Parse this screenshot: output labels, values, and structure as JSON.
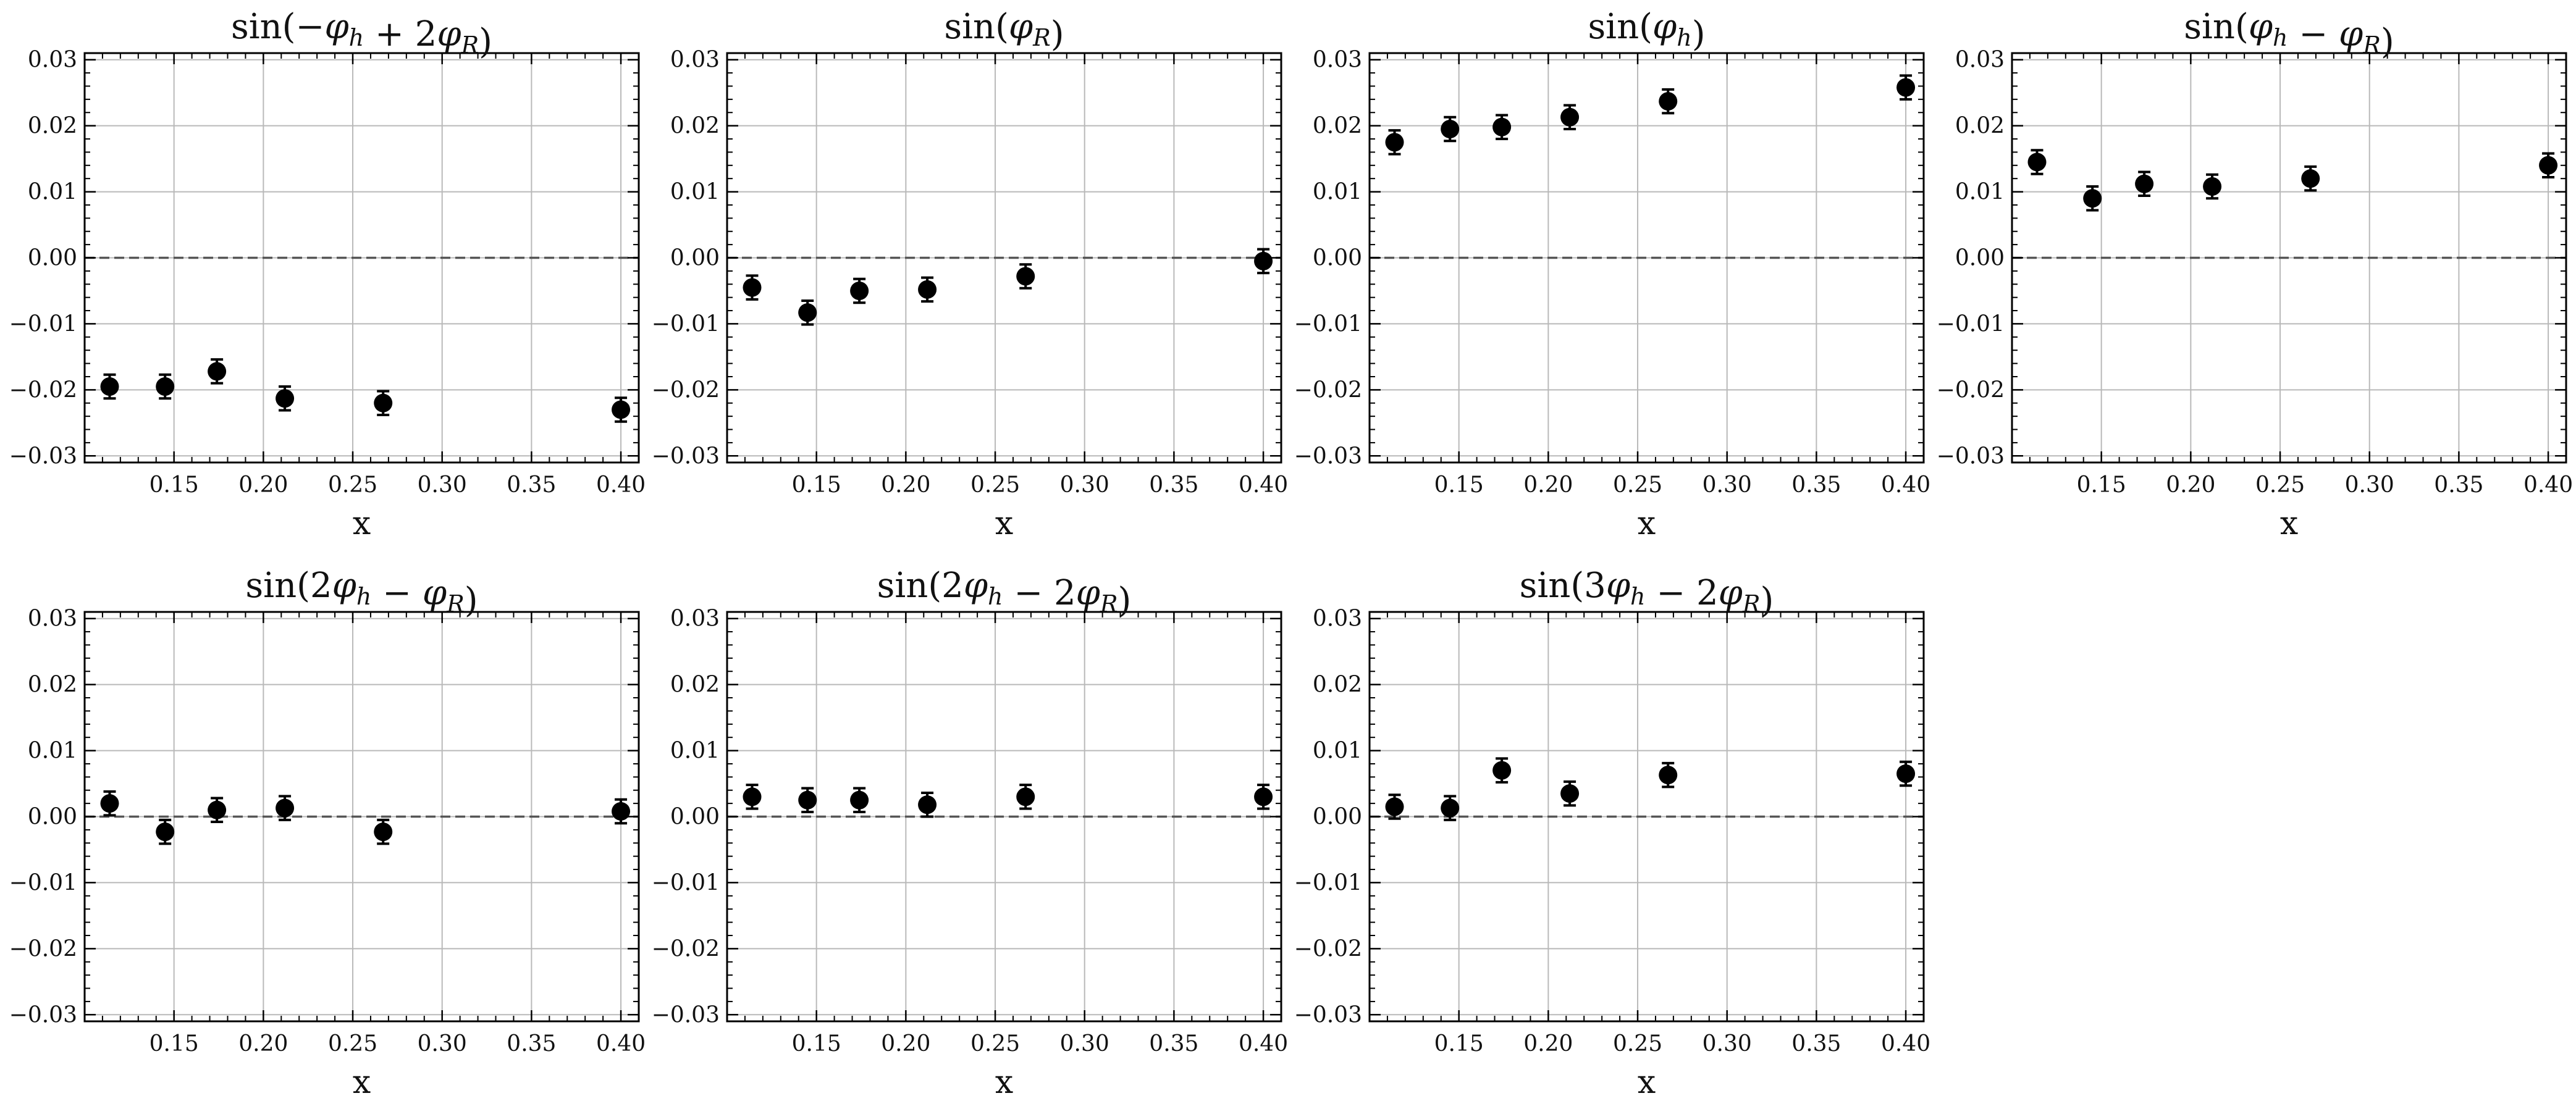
{
  "chart_data": [
    {
      "type": "scatter",
      "title": "sin(-φ_h+2φ_R)",
      "title_tex": [
        [
          "sin(−"
        ],
        [
          "φ",
          "h"
        ],
        [
          " + 2"
        ],
        [
          "φ",
          "R"
        ],
        [
          ")"
        ]
      ],
      "xlabel": "x",
      "ylabel": "",
      "xticks": [
        "0.15",
        "0.20",
        "0.25",
        "0.30",
        "0.35",
        "0.40"
      ],
      "yticks": [
        "−0.03",
        "−0.02",
        "−0.01",
        "0.00",
        "0.01",
        "0.02",
        "0.03"
      ],
      "xlim": [
        0.1,
        0.41
      ],
      "ylim": [
        -0.031,
        0.031
      ],
      "grid": true,
      "reference_line": 0,
      "x": [
        0.114,
        0.145,
        0.174,
        0.212,
        0.267,
        0.4
      ],
      "y": [
        -0.0195,
        -0.0195,
        -0.0172,
        -0.0213,
        -0.022,
        -0.023
      ],
      "yerr": [
        0.0018,
        0.0018,
        0.0018,
        0.0018,
        0.0018,
        0.0018
      ]
    },
    {
      "type": "scatter",
      "title": "sin(φ_R)",
      "title_tex": [
        [
          "sin("
        ],
        [
          "φ",
          "R"
        ],
        [
          ")"
        ]
      ],
      "xlabel": "x",
      "ylabel": "",
      "xticks": [
        "0.15",
        "0.20",
        "0.25",
        "0.30",
        "0.35",
        "0.40"
      ],
      "yticks": [
        "−0.03",
        "−0.02",
        "−0.01",
        "0.00",
        "0.01",
        "0.02",
        "0.03"
      ],
      "xlim": [
        0.1,
        0.41
      ],
      "ylim": [
        -0.031,
        0.031
      ],
      "grid": true,
      "reference_line": 0,
      "x": [
        0.114,
        0.145,
        0.174,
        0.212,
        0.267,
        0.4
      ],
      "y": [
        -0.0045,
        -0.0083,
        -0.005,
        -0.0048,
        -0.0028,
        -0.0005
      ],
      "yerr": [
        0.0018,
        0.0018,
        0.0018,
        0.0018,
        0.0018,
        0.0018
      ]
    },
    {
      "type": "scatter",
      "title": "sin(φ_h)",
      "title_tex": [
        [
          "sin("
        ],
        [
          "φ",
          "h"
        ],
        [
          ")"
        ]
      ],
      "xlabel": "x",
      "ylabel": "",
      "xticks": [
        "0.15",
        "0.20",
        "0.25",
        "0.30",
        "0.35",
        "0.40"
      ],
      "yticks": [
        "−0.03",
        "−0.02",
        "−0.01",
        "0.00",
        "0.01",
        "0.02",
        "0.03"
      ],
      "xlim": [
        0.1,
        0.41
      ],
      "ylim": [
        -0.031,
        0.031
      ],
      "grid": true,
      "reference_line": 0,
      "x": [
        0.114,
        0.145,
        0.174,
        0.212,
        0.267,
        0.4
      ],
      "y": [
        0.0175,
        0.0195,
        0.0198,
        0.0213,
        0.0237,
        0.0258
      ],
      "yerr": [
        0.0018,
        0.0018,
        0.0018,
        0.0018,
        0.0018,
        0.0018
      ]
    },
    {
      "type": "scatter",
      "title": "sin(φ_h-φ_R)",
      "title_tex": [
        [
          "sin("
        ],
        [
          "φ",
          "h"
        ],
        [
          " − "
        ],
        [
          "φ",
          "R"
        ],
        [
          ")"
        ]
      ],
      "xlabel": "x",
      "ylabel": "",
      "xticks": [
        "0.15",
        "0.20",
        "0.25",
        "0.30",
        "0.35",
        "0.40"
      ],
      "yticks": [
        "−0.03",
        "−0.02",
        "−0.01",
        "0.00",
        "0.01",
        "0.02",
        "0.03"
      ],
      "xlim": [
        0.1,
        0.41
      ],
      "ylim": [
        -0.031,
        0.031
      ],
      "grid": true,
      "reference_line": 0,
      "x": [
        0.114,
        0.145,
        0.174,
        0.212,
        0.267,
        0.4
      ],
      "y": [
        0.0145,
        0.009,
        0.0112,
        0.0108,
        0.012,
        0.014
      ],
      "yerr": [
        0.0018,
        0.0018,
        0.0018,
        0.0018,
        0.0018,
        0.0018
      ]
    },
    {
      "type": "scatter",
      "title": "sin(2φ_h-φ_R)",
      "title_tex": [
        [
          "sin(2"
        ],
        [
          "φ",
          "h"
        ],
        [
          " − "
        ],
        [
          "φ",
          "R"
        ],
        [
          ")"
        ]
      ],
      "xlabel": "x",
      "ylabel": "",
      "xticks": [
        "0.15",
        "0.20",
        "0.25",
        "0.30",
        "0.35",
        "0.40"
      ],
      "yticks": [
        "−0.03",
        "−0.02",
        "−0.01",
        "0.00",
        "0.01",
        "0.02",
        "0.03"
      ],
      "xlim": [
        0.1,
        0.41
      ],
      "ylim": [
        -0.031,
        0.031
      ],
      "grid": true,
      "reference_line": 0,
      "x": [
        0.114,
        0.145,
        0.174,
        0.212,
        0.267,
        0.4
      ],
      "y": [
        0.002,
        -0.0023,
        0.001,
        0.0013,
        -0.0023,
        0.0008
      ],
      "yerr": [
        0.0018,
        0.0018,
        0.0018,
        0.0018,
        0.0018,
        0.0018
      ]
    },
    {
      "type": "scatter",
      "title": "sin(2φ_h-2φ_R)",
      "title_tex": [
        [
          "sin(2"
        ],
        [
          "φ",
          "h"
        ],
        [
          " − 2"
        ],
        [
          "φ",
          "R"
        ],
        [
          ")"
        ]
      ],
      "xlabel": "x",
      "ylabel": "",
      "xticks": [
        "0.15",
        "0.20",
        "0.25",
        "0.30",
        "0.35",
        "0.40"
      ],
      "yticks": [
        "−0.03",
        "−0.02",
        "−0.01",
        "0.00",
        "0.01",
        "0.02",
        "0.03"
      ],
      "xlim": [
        0.1,
        0.41
      ],
      "ylim": [
        -0.031,
        0.031
      ],
      "grid": true,
      "reference_line": 0,
      "x": [
        0.114,
        0.145,
        0.174,
        0.212,
        0.267,
        0.4
      ],
      "y": [
        0.003,
        0.0025,
        0.0025,
        0.0018,
        0.003,
        0.003
      ],
      "yerr": [
        0.0018,
        0.0018,
        0.0018,
        0.0018,
        0.0018,
        0.0018
      ]
    },
    {
      "type": "scatter",
      "title": "sin(3φ_h-2φ_R)",
      "title_tex": [
        [
          "sin(3"
        ],
        [
          "φ",
          "h"
        ],
        [
          " − 2"
        ],
        [
          "φ",
          "R"
        ],
        [
          ")"
        ]
      ],
      "xlabel": "x",
      "ylabel": "",
      "xticks": [
        "0.15",
        "0.20",
        "0.25",
        "0.30",
        "0.35",
        "0.40"
      ],
      "yticks": [
        "−0.03",
        "−0.02",
        "−0.01",
        "0.00",
        "0.01",
        "0.02",
        "0.03"
      ],
      "xlim": [
        0.1,
        0.41
      ],
      "ylim": [
        -0.031,
        0.031
      ],
      "grid": true,
      "reference_line": 0,
      "x": [
        0.114,
        0.145,
        0.174,
        0.212,
        0.267,
        0.4
      ],
      "y": [
        0.0015,
        0.0013,
        0.007,
        0.0035,
        0.0063,
        0.0065
      ],
      "yerr": [
        0.0018,
        0.0018,
        0.0018,
        0.0018,
        0.0018,
        0.0018
      ]
    }
  ]
}
